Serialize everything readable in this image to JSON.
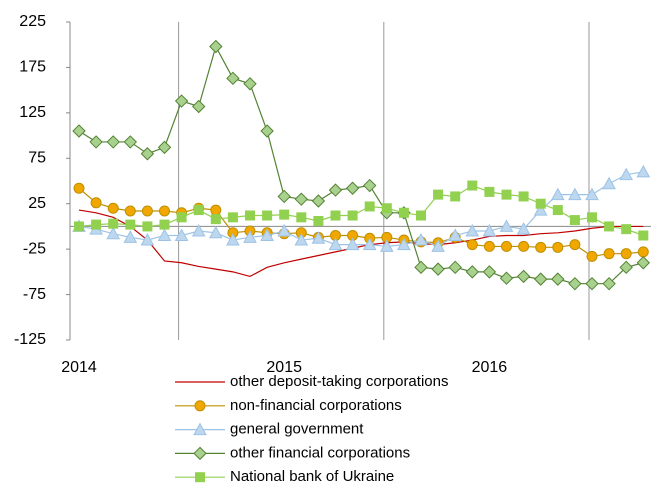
{
  "chart_data": {
    "type": "line",
    "categories": [
      "2014",
      null,
      null,
      null,
      null,
      null,
      null,
      null,
      null,
      null,
      null,
      null,
      "2015",
      null,
      null,
      null,
      null,
      null,
      null,
      null,
      null,
      null,
      null,
      null,
      "2016",
      null,
      null,
      null,
      null,
      null,
      null,
      null,
      null,
      null
    ],
    "ylim": [
      -125,
      225
    ],
    "yticks": [
      -125,
      -75,
      -25,
      25,
      75,
      125,
      175,
      225
    ],
    "series": [
      {
        "name": "other deposit-taking corporations",
        "color": "#c00000",
        "marker": "none",
        "values": [
          18,
          15,
          10,
          0,
          -15,
          -38,
          -40,
          -44,
          -47,
          -50,
          -55,
          -45,
          -40,
          -36,
          -32,
          -28,
          -24,
          -20,
          -18,
          -17,
          -19,
          -20,
          -18,
          -15,
          -11,
          -10,
          -10,
          -8,
          -7,
          -5,
          -2,
          0,
          0,
          0
        ]
      },
      {
        "name": "non-financial corporations",
        "color": "#bf8f00",
        "fill": "#f0a800",
        "marker": "circle",
        "values": [
          42,
          26,
          20,
          17,
          17,
          17,
          15,
          20,
          18,
          -7,
          -5,
          -7,
          -8,
          -7,
          -12,
          -10,
          -10,
          -13,
          -12,
          -15,
          -17,
          -18,
          -12,
          -20,
          -22,
          -22,
          -22,
          -23,
          -23,
          -20,
          -33,
          -30,
          -30,
          -28
        ]
      },
      {
        "name": "general government",
        "color": "#9dc3e6",
        "fill": "#bdd7ee",
        "marker": "triangle",
        "values": [
          0,
          -3,
          -8,
          -12,
          -15,
          -10,
          -10,
          -5,
          -7,
          -15,
          -12,
          -10,
          -5,
          -15,
          -13,
          -20,
          -20,
          -20,
          -22,
          -20,
          -15,
          -22,
          -10,
          -5,
          -5,
          0,
          -3,
          18,
          35,
          35,
          35,
          47,
          57,
          60
        ]
      },
      {
        "name": "other financial corporations",
        "color": "#548235",
        "fill": "#a9d18e",
        "marker": "diamond",
        "values": [
          105,
          93,
          93,
          93,
          80,
          87,
          138,
          132,
          198,
          163,
          157,
          105,
          33,
          30,
          28,
          40,
          42,
          45,
          15,
          15,
          -45,
          -47,
          -45,
          -50,
          -50,
          -57,
          -55,
          -58,
          -58,
          -63,
          -63,
          -63,
          -45,
          -40
        ]
      },
      {
        "name": "National bank of Ukraine",
        "color": "#92d050",
        "fill": "#92d050",
        "marker": "square",
        "values": [
          0,
          2,
          3,
          2,
          0,
          2,
          10,
          18,
          8,
          10,
          12,
          12,
          13,
          10,
          6,
          12,
          12,
          22,
          20,
          15,
          12,
          35,
          33,
          45,
          38,
          35,
          33,
          25,
          18,
          7,
          10,
          0,
          -3,
          -10
        ]
      }
    ]
  }
}
